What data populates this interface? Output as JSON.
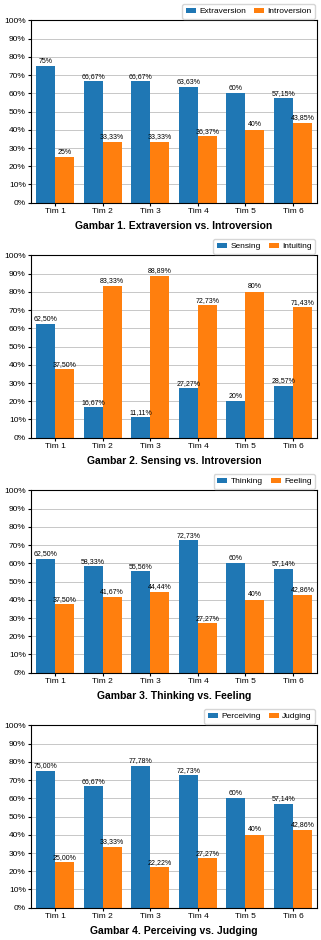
{
  "chart_data": [
    {
      "type": "bar",
      "xlabel": "Gambar 1. Extraversion vs. Introversion",
      "categories": [
        "Tim 1",
        "Tim 2",
        "Tim 3",
        "Tim 4",
        "Tim 5",
        "Tim 6"
      ],
      "series": [
        {
          "name": "Extraversion",
          "values": [
            75,
            66.67,
            66.67,
            63.63,
            60,
            57.15
          ],
          "value_labels": [
            "75%",
            "66,67%",
            "66,67%",
            "63,63%",
            "60%",
            "57,15%"
          ]
        },
        {
          "name": "Introversion",
          "values": [
            25,
            33.33,
            33.33,
            36.37,
            40,
            43.85
          ],
          "value_labels": [
            "25%",
            "33,33%",
            "33,33%",
            "36,37%",
            "40%",
            "43,85%"
          ]
        }
      ],
      "ylim": [
        0,
        100
      ],
      "yticks": [
        {
          "value": 0,
          "label": "0%"
        },
        {
          "value": 10,
          "label": "10%"
        },
        {
          "value": 20,
          "label": "20%"
        },
        {
          "value": 30,
          "label": "30%"
        },
        {
          "value": 40,
          "label": "40%"
        },
        {
          "value": 50,
          "label": "50%"
        },
        {
          "value": 60,
          "label": "60%"
        },
        {
          "value": 70,
          "label": "70%"
        },
        {
          "value": 80,
          "label": "80%"
        },
        {
          "value": 90,
          "label": "90%"
        },
        {
          "value": 100,
          "label": "100%"
        }
      ],
      "grid": true,
      "legend": "upper right",
      "data_labels": true
    },
    {
      "type": "bar",
      "xlabel": "Gambar 2. Sensing vs. Introversion",
      "categories": [
        "Tim 1",
        "Tim 2",
        "Tim 3",
        "Tim 4",
        "Tim 5",
        "Tim 6"
      ],
      "series": [
        {
          "name": "Sensing",
          "values": [
            62.5,
            16.67,
            11.11,
            27.27,
            20,
            28.57
          ],
          "value_labels": [
            "62,50%",
            "16,67%",
            "11,11%",
            "27,27%",
            "20%",
            "28,57%"
          ]
        },
        {
          "name": "Intuiting",
          "values": [
            37.5,
            83.33,
            88.89,
            72.73,
            80,
            71.43
          ],
          "value_labels": [
            "37,50%",
            "83,33%",
            "88,89%",
            "72,73%",
            "80%",
            "71,43%"
          ]
        }
      ],
      "ylim": [
        0,
        100
      ],
      "yticks": [
        {
          "value": 0,
          "label": "0%"
        },
        {
          "value": 10,
          "label": "10%"
        },
        {
          "value": 20,
          "label": "20%"
        },
        {
          "value": 30,
          "label": "30%"
        },
        {
          "value": 40,
          "label": "40%"
        },
        {
          "value": 50,
          "label": "50%"
        },
        {
          "value": 60,
          "label": "60%"
        },
        {
          "value": 70,
          "label": "70%"
        },
        {
          "value": 80,
          "label": "80%"
        },
        {
          "value": 90,
          "label": "90%"
        },
        {
          "value": 100,
          "label": "100%"
        }
      ],
      "grid": true,
      "legend": "upper right",
      "data_labels": true
    },
    {
      "type": "bar",
      "xlabel": "Gambar 3. Thinking vs. Feeling",
      "categories": [
        "Tim 1",
        "Tim 2",
        "Tim 3",
        "Tim 4",
        "Tim 5",
        "Tim 6"
      ],
      "series": [
        {
          "name": "Thinking",
          "values": [
            62.5,
            58.33,
            55.56,
            72.73,
            60,
            57.14
          ],
          "value_labels": [
            "62,50%",
            "58,33%",
            "55,56%",
            "72,73%",
            "60%",
            "57,14%"
          ]
        },
        {
          "name": "Feeling",
          "values": [
            37.5,
            41.67,
            44.44,
            27.27,
            40,
            42.86
          ],
          "value_labels": [
            "37,50%",
            "41,67%",
            "44,44%",
            "27,27%",
            "40%",
            "42,86%"
          ]
        }
      ],
      "ylim": [
        0,
        100
      ],
      "yticks": [
        {
          "value": 0,
          "label": "0%"
        },
        {
          "value": 10,
          "label": "10%"
        },
        {
          "value": 20,
          "label": "20%"
        },
        {
          "value": 30,
          "label": "30%"
        },
        {
          "value": 40,
          "label": "40%"
        },
        {
          "value": 50,
          "label": "50%"
        },
        {
          "value": 60,
          "label": "60%"
        },
        {
          "value": 70,
          "label": "70%"
        },
        {
          "value": 80,
          "label": "80%"
        },
        {
          "value": 90,
          "label": "90%"
        },
        {
          "value": 100,
          "label": "100%"
        }
      ],
      "grid": true,
      "legend": "upper right",
      "data_labels": true
    },
    {
      "type": "bar",
      "xlabel": "Gambar 4. Perceiving vs. Judging",
      "categories": [
        "Tim 1",
        "Tim 2",
        "Tim 3",
        "Tim 4",
        "Tim 5",
        "Tim 6"
      ],
      "series": [
        {
          "name": "Perceiving",
          "values": [
            75.0,
            66.67,
            77.78,
            72.73,
            60,
            57.14
          ],
          "value_labels": [
            "75,00%",
            "66,67%",
            "77,78%",
            "72,73%",
            "60%",
            "57,14%"
          ]
        },
        {
          "name": "Judging",
          "values": [
            25.0,
            33.33,
            22.22,
            27.27,
            40,
            42.86
          ],
          "value_labels": [
            "25,00%",
            "33,33%",
            "22,22%",
            "27,27%",
            "40%",
            "42,86%"
          ]
        }
      ],
      "ylim": [
        0,
        100
      ],
      "yticks": [
        {
          "value": 0,
          "label": "0%"
        },
        {
          "value": 10,
          "label": "10%"
        },
        {
          "value": 20,
          "label": "20%"
        },
        {
          "value": 30,
          "label": "30%"
        },
        {
          "value": 40,
          "label": "40%"
        },
        {
          "value": 50,
          "label": "50%"
        },
        {
          "value": 60,
          "label": "60%"
        },
        {
          "value": 70,
          "label": "70%"
        },
        {
          "value": 80,
          "label": "80%"
        },
        {
          "value": 90,
          "label": "90%"
        },
        {
          "value": 100,
          "label": "100%"
        }
      ],
      "grid": true,
      "legend": "upper right",
      "data_labels": true
    }
  ]
}
